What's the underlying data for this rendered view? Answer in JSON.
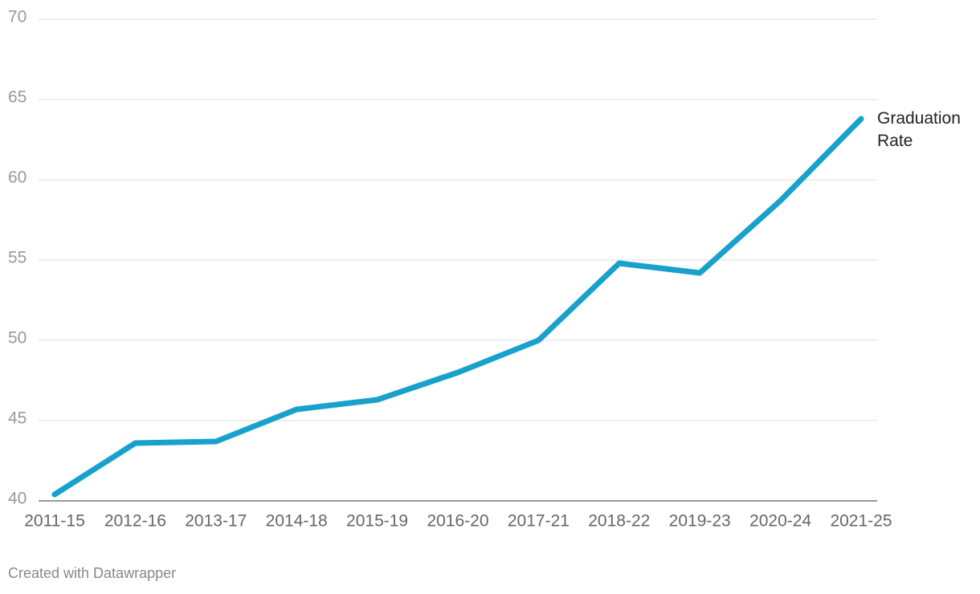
{
  "chart_data": {
    "type": "line",
    "categories": [
      "2011-15",
      "2012-16",
      "2013-17",
      "2014-18",
      "2015-19",
      "2016-20",
      "2017-21",
      "2018-22",
      "2019-23",
      "2020-24",
      "2021-25"
    ],
    "series": [
      {
        "name": "Graduation Rate",
        "color": "#18a1cd",
        "values": [
          40.4,
          43.6,
          43.7,
          45.7,
          46.3,
          48.0,
          50.0,
          54.8,
          54.2,
          58.7,
          63.8
        ]
      }
    ],
    "ylim": [
      40,
      70
    ],
    "yticks": [
      40,
      45,
      50,
      55,
      60,
      65,
      70
    ],
    "grid": true,
    "footer": "Created with Datawrapper"
  }
}
